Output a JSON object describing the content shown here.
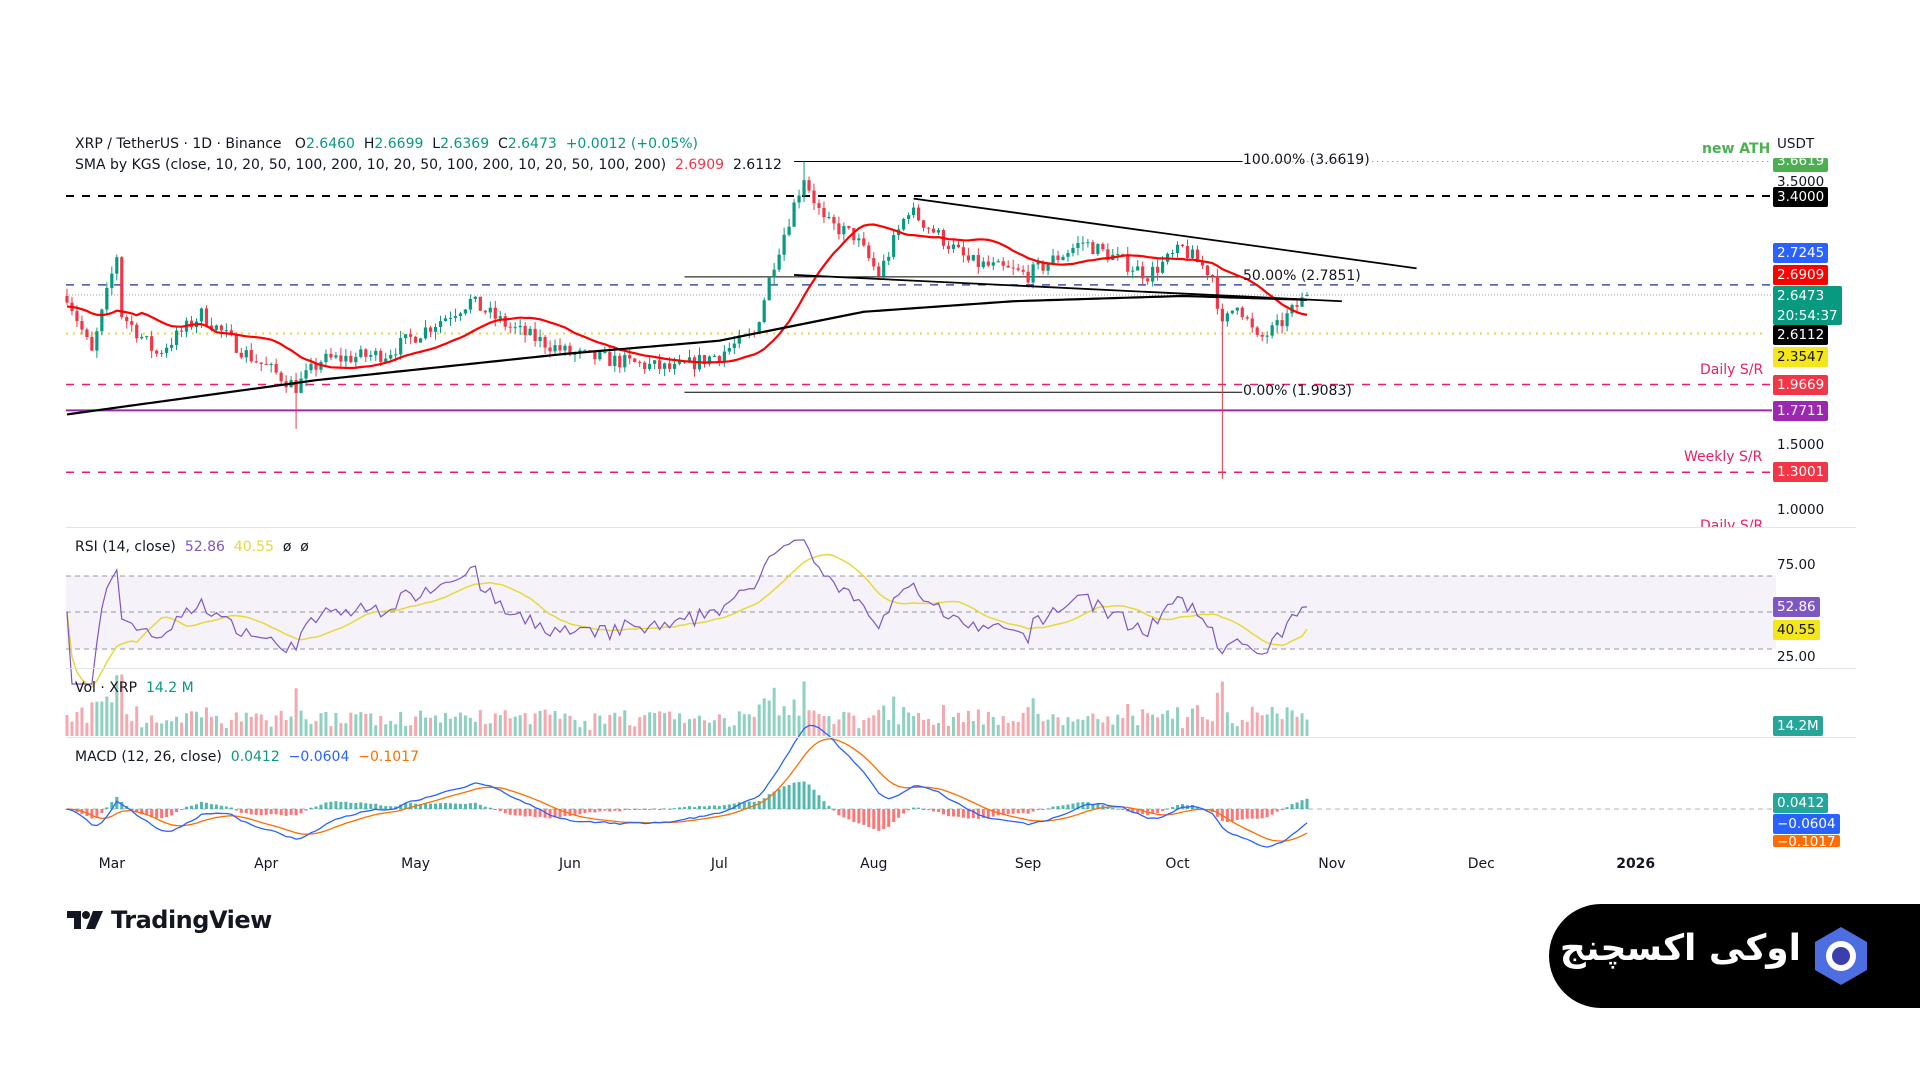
{
  "header": {
    "symbol": "XRP / TetherUS · 1D · Binance",
    "o_label": "O",
    "o": "2.6460",
    "h_label": "H",
    "h": "2.6699",
    "l_label": "L",
    "l": "2.6369",
    "c_label": "C",
    "c": "2.6473",
    "change": "+0.0012 (+0.05%)"
  },
  "sma": {
    "label": "SMA by KGS (close, 10, 20, 50, 100, 200, 10, 20, 50, 100, 200, 10, 20, 50, 100, 200)",
    "v1": "2.6909",
    "v2": "2.6112"
  },
  "rsi": {
    "label": "RSI (14, close)",
    "v1": "52.86",
    "v2": "40.55",
    "v3": "ø",
    "v4": "ø"
  },
  "vol": {
    "label": "Vol · XRP",
    "v": "14.2 M"
  },
  "macd": {
    "label": "MACD (12, 26, close)",
    "v1": "0.0412",
    "v2": "−0.0604",
    "v3": "−0.1017"
  },
  "axis": {
    "currency": "USDT",
    "ticks": [
      "3.5000",
      "1.5000",
      "1.0000"
    ],
    "rsi_ticks": [
      "75.00",
      "25.00"
    ],
    "labels": {
      "ath": "3.6619",
      "l3400": "3.4000",
      "blue": "2.7245",
      "sma_red": "2.6909",
      "price": "2.6473",
      "countdown": "20:54:37",
      "sma_black": "2.6112",
      "yellow": "2.3547",
      "daily": "1.9669",
      "purple": "1.7711",
      "weekly": "1.3001",
      "rsi": "52.86",
      "rsi_ma": "40.55",
      "vol": "14.2M",
      "macd": "0.0412",
      "signal": "−0.0604",
      "hist": "−0.1017"
    }
  },
  "annotations": {
    "new_ath": "new ATH",
    "daily_sr": "Daily S/R",
    "weekly_sr": "Weekly S/R",
    "daily_sr2": "Daily S/R",
    "fib100": "100.00% (3.6619)",
    "fib50": "50.00% (2.7851)",
    "fib0": "0.00% (1.9083)"
  },
  "time_labels": [
    "Mar",
    "Apr",
    "May",
    "Jun",
    "Jul",
    "Aug",
    "Sep",
    "Oct",
    "Nov",
    "Dec",
    "2026"
  ],
  "logo": "TradingView",
  "brand": "اوکی اکسچنج",
  "colors": {
    "up": "#089981",
    "down": "#f23645",
    "sma_fast": "#ff0000",
    "sma_slow": "#000000",
    "rsi": "#7e57c2",
    "rsi_ma": "#e6d93a"
  },
  "chart_data": {
    "type": "candlestick",
    "title": "XRP / TetherUS · 1D · Binance",
    "x_start": "2025-02-20",
    "x_unit": "day",
    "close_anchors": [
      [
        0,
        2.65
      ],
      [
        5,
        2.2
      ],
      [
        10,
        2.95
      ],
      [
        11,
        2.5
      ],
      [
        18,
        2.2
      ],
      [
        27,
        2.5
      ],
      [
        36,
        2.2
      ],
      [
        46,
        1.95
      ],
      [
        51,
        2.15
      ],
      [
        64,
        2.2
      ],
      [
        81,
        2.6
      ],
      [
        89,
        2.4
      ],
      [
        101,
        2.2
      ],
      [
        122,
        2.08
      ],
      [
        131,
        2.2
      ],
      [
        138,
        2.35
      ],
      [
        142,
        2.9
      ],
      [
        148,
        3.55
      ],
      [
        152,
        3.2
      ],
      [
        158,
        3.1
      ],
      [
        163,
        2.8
      ],
      [
        169,
        3.3
      ],
      [
        175,
        3.1
      ],
      [
        181,
        2.9
      ],
      [
        193,
        2.8
      ],
      [
        204,
        3.05
      ],
      [
        212,
        2.9
      ],
      [
        217,
        2.8
      ],
      [
        224,
        3.0
      ],
      [
        230,
        2.8
      ],
      [
        232,
        2.4
      ],
      [
        235,
        2.6
      ],
      [
        239,
        2.3
      ],
      [
        243,
        2.4
      ],
      [
        249,
        2.6473
      ]
    ],
    "wick_extremes": [
      [
        46,
        "low",
        1.63
      ],
      [
        148,
        "high",
        3.6619
      ],
      [
        232,
        "low",
        1.25
      ]
    ],
    "sma200_anchors": [
      [
        0,
        1.74
      ],
      [
        50,
        2.0
      ],
      [
        100,
        2.2
      ],
      [
        131,
        2.3
      ],
      [
        160,
        2.52
      ],
      [
        190,
        2.6
      ],
      [
        224,
        2.64
      ],
      [
        249,
        2.6112
      ]
    ],
    "levels": [
      {
        "name": "3.4000",
        "price": 3.4
      },
      {
        "name": "blue",
        "price": 2.7245
      },
      {
        "name": "yellow",
        "price": 2.3547
      },
      {
        "name": "Daily S/R",
        "price": 1.9669
      },
      {
        "name": "purple",
        "price": 1.7711
      },
      {
        "name": "Weekly S/R",
        "price": 1.3001
      }
    ],
    "fib": [
      {
        "pct": "100.00%",
        "price": 3.6619
      },
      {
        "pct": "50.00%",
        "price": 2.7851
      },
      {
        "pct": "0.00%",
        "price": 1.9083
      }
    ],
    "trendlines": [
      {
        "from": [
          165,
          3.4
        ],
        "to": [
          266,
          2.87
        ]
      },
      {
        "from": [
          145,
          2.79
        ],
        "to": [
          254,
          2.6
        ]
      }
    ],
    "ylim": [
      1.0,
      3.66
    ]
  }
}
